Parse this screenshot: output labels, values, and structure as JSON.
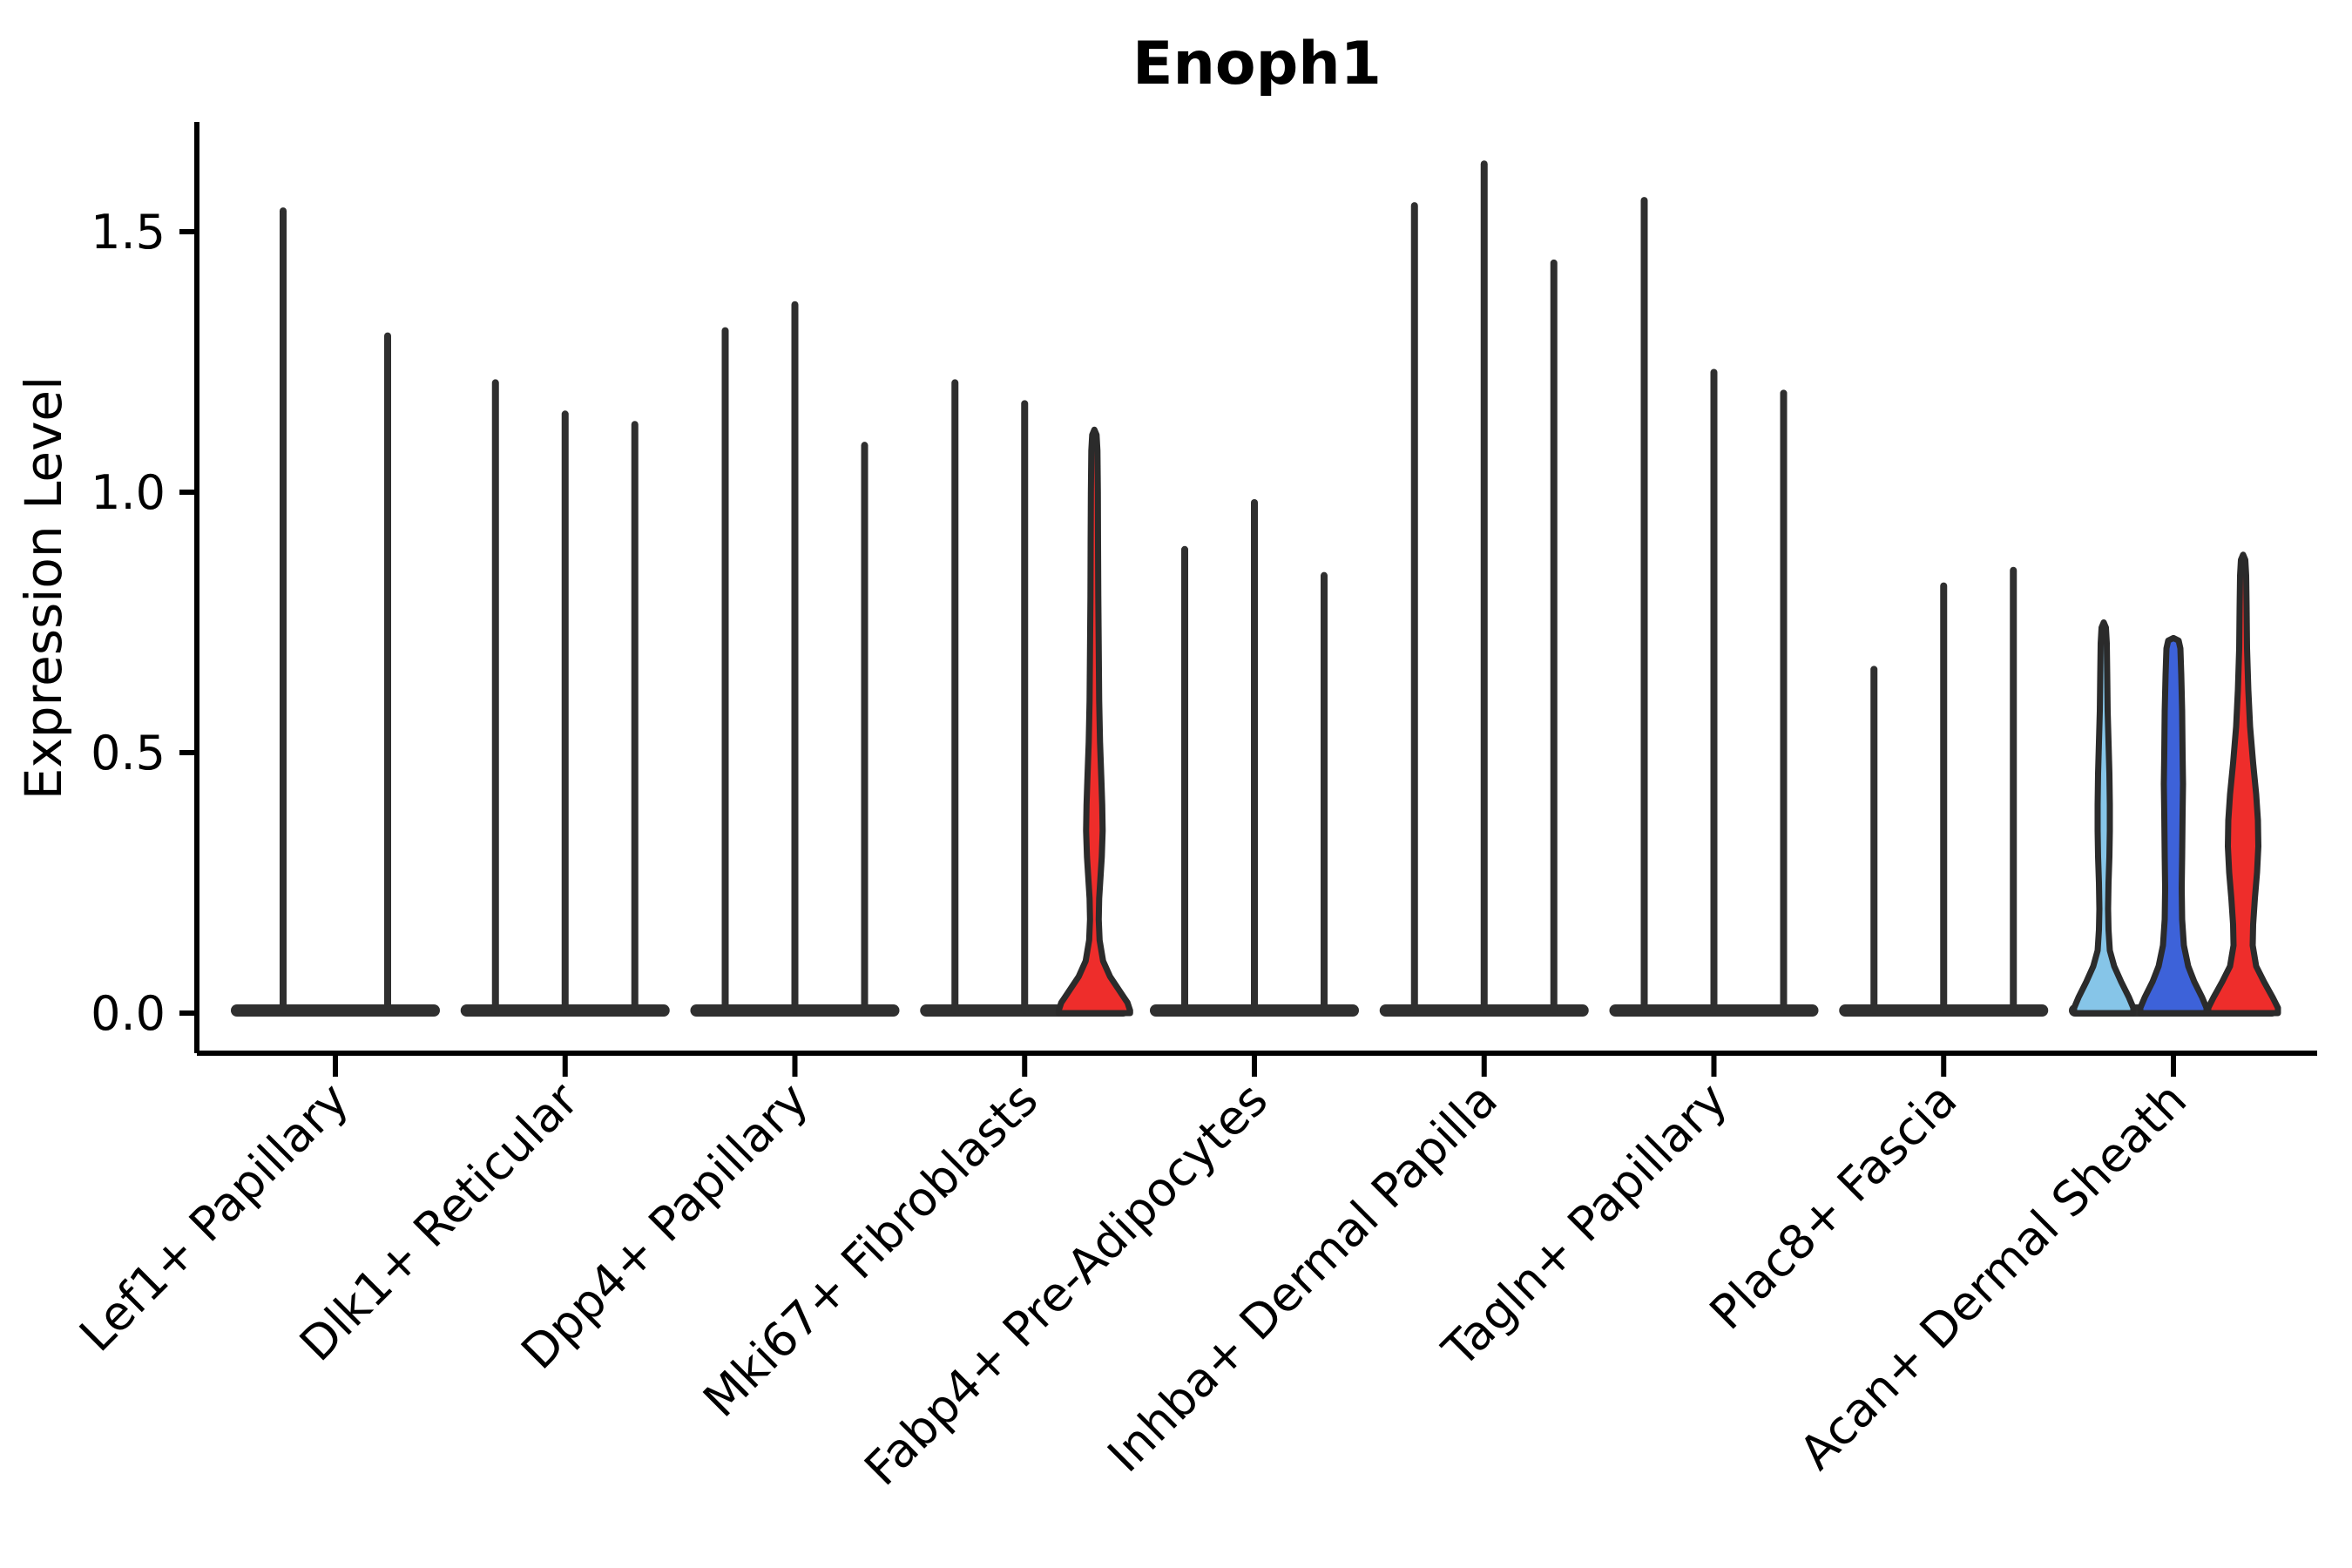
{
  "chart_data": {
    "type": "violin",
    "title": "Enoph1",
    "ylabel": "Expression Level",
    "xlabel": "",
    "grid": false,
    "legend": null,
    "ylim": [
      -0.077,
      1.71
    ],
    "yticks": [
      {
        "value": 0.0,
        "label": "0.0"
      },
      {
        "value": 0.5,
        "label": "0.5"
      },
      {
        "value": 1.0,
        "label": "1.0"
      },
      {
        "value": 1.5,
        "label": "1.5"
      }
    ],
    "colors": {
      "spike": "#2f2f2f",
      "outline": "#2b2b2b",
      "axis": "#000000",
      "red": "#ee2d2b",
      "blue": "#3d62d9",
      "light_blue": "#86c5e8"
    },
    "categories": [
      "Lef1+ Papillary",
      "Dlk1+ Reticular",
      "Dpp4+ Papillary",
      "Mki67+ Fibroblasts",
      "Fabp4+ Pre-Adipocytes",
      "Inhba+ Dermal Papilla",
      "Tagln+ Papillary",
      "Plac8+ Fascia",
      "Acan+ Dermal Sheath"
    ],
    "groups": [
      {
        "category": "Lef1+ Papillary",
        "violins": [
          {
            "style": "spike",
            "offset": -60,
            "max": 1.54
          },
          {
            "style": "spike",
            "offset": 60,
            "max": 1.3
          }
        ]
      },
      {
        "category": "Dlk1+ Reticular",
        "violins": [
          {
            "style": "spike",
            "offset": -80,
            "max": 1.21
          },
          {
            "style": "spike",
            "offset": 0,
            "max": 1.15
          },
          {
            "style": "spike",
            "offset": 80,
            "max": 1.13
          }
        ]
      },
      {
        "category": "Dpp4+ Papillary",
        "violins": [
          {
            "style": "spike",
            "offset": -80,
            "max": 1.31
          },
          {
            "style": "spike",
            "offset": 0,
            "max": 1.36
          },
          {
            "style": "spike",
            "offset": 80,
            "max": 1.09
          }
        ]
      },
      {
        "category": "Mki67+ Fibroblasts",
        "violins": [
          {
            "style": "spike",
            "offset": -80,
            "max": 1.21
          },
          {
            "style": "spike",
            "offset": 0,
            "max": 1.17
          },
          {
            "style": "violin",
            "offset": 80,
            "max": 1.12,
            "color_key": "red",
            "profile": [
              [
                1.12,
                0
              ],
              [
                1.11,
                2.5
              ],
              [
                1.08,
                3.5
              ],
              [
                1.0,
                4
              ],
              [
                0.9,
                4.2
              ],
              [
                0.8,
                4.5
              ],
              [
                0.7,
                5
              ],
              [
                0.6,
                5.5
              ],
              [
                0.52,
                6.5
              ],
              [
                0.45,
                8
              ],
              [
                0.4,
                9
              ],
              [
                0.35,
                9.5
              ],
              [
                0.3,
                8.5
              ],
              [
                0.26,
                7
              ],
              [
                0.22,
                5.5
              ],
              [
                0.18,
                5
              ],
              [
                0.14,
                6
              ],
              [
                0.1,
                10
              ],
              [
                0.07,
                18
              ],
              [
                0.04,
                30
              ],
              [
                0.02,
                38
              ],
              [
                0.005,
                41
              ],
              [
                0,
                41
              ]
            ]
          }
        ]
      },
      {
        "category": "Fabp4+ Pre-Adipocytes",
        "violins": [
          {
            "style": "spike",
            "offset": -80,
            "max": 0.89
          },
          {
            "style": "spike",
            "offset": 0,
            "max": 0.98
          },
          {
            "style": "spike",
            "offset": 80,
            "max": 0.84
          }
        ]
      },
      {
        "category": "Inhba+ Dermal Papilla",
        "violins": [
          {
            "style": "spike",
            "offset": -80,
            "max": 1.55
          },
          {
            "style": "spike",
            "offset": 0,
            "max": 1.63
          },
          {
            "style": "spike",
            "offset": 80,
            "max": 1.44
          }
        ]
      },
      {
        "category": "Tagln+ Papillary",
        "violins": [
          {
            "style": "spike",
            "offset": -80,
            "max": 1.56
          },
          {
            "style": "spike",
            "offset": 0,
            "max": 1.23
          },
          {
            "style": "spike",
            "offset": 80,
            "max": 1.19
          }
        ]
      },
      {
        "category": "Plac8+ Fascia",
        "violins": [
          {
            "style": "spike",
            "offset": -80,
            "max": 0.66
          },
          {
            "style": "spike",
            "offset": 0,
            "max": 0.82
          },
          {
            "style": "spike",
            "offset": 80,
            "max": 0.85
          }
        ]
      },
      {
        "category": "Acan+ Dermal Sheath",
        "violins": [
          {
            "style": "violin",
            "offset": -80,
            "max": 0.75,
            "color_key": "light_blue",
            "profile": [
              [
                0.75,
                0
              ],
              [
                0.74,
                2.5
              ],
              [
                0.71,
                3.5
              ],
              [
                0.65,
                4
              ],
              [
                0.58,
                4.5
              ],
              [
                0.52,
                5.5
              ],
              [
                0.46,
                6.5
              ],
              [
                0.4,
                7
              ],
              [
                0.35,
                7
              ],
              [
                0.3,
                6.5
              ],
              [
                0.25,
                5.5
              ],
              [
                0.2,
                5
              ],
              [
                0.16,
                5.5
              ],
              [
                0.12,
                7
              ],
              [
                0.09,
                12
              ],
              [
                0.06,
                20
              ],
              [
                0.03,
                29
              ],
              [
                0.01,
                34
              ],
              [
                0,
                34
              ]
            ]
          },
          {
            "style": "violin",
            "offset": 0,
            "max": 0.72,
            "color_key": "blue",
            "profile": [
              [
                0.72,
                0
              ],
              [
                0.715,
                6
              ],
              [
                0.7,
                8
              ],
              [
                0.65,
                9
              ],
              [
                0.58,
                10
              ],
              [
                0.5,
                10.5
              ],
              [
                0.44,
                11
              ],
              [
                0.38,
                10.5
              ],
              [
                0.3,
                10
              ],
              [
                0.24,
                9.5
              ],
              [
                0.18,
                10
              ],
              [
                0.13,
                12
              ],
              [
                0.09,
                17
              ],
              [
                0.06,
                24
              ],
              [
                0.03,
                33
              ],
              [
                0.01,
                38
              ],
              [
                0,
                38
              ]
            ]
          },
          {
            "style": "violin",
            "offset": 80,
            "max": 0.88,
            "color_key": "red",
            "profile": [
              [
                0.88,
                0
              ],
              [
                0.87,
                2.5
              ],
              [
                0.84,
                3.5
              ],
              [
                0.78,
                4
              ],
              [
                0.7,
                4.5
              ],
              [
                0.62,
                6
              ],
              [
                0.55,
                8
              ],
              [
                0.48,
                11.5
              ],
              [
                0.42,
                15
              ],
              [
                0.37,
                17
              ],
              [
                0.32,
                17.5
              ],
              [
                0.27,
                16
              ],
              [
                0.22,
                13.5
              ],
              [
                0.17,
                11.5
              ],
              [
                0.13,
                11
              ],
              [
                0.09,
                15
              ],
              [
                0.06,
                24
              ],
              [
                0.03,
                34
              ],
              [
                0.01,
                40
              ],
              [
                0,
                40
              ]
            ]
          }
        ]
      }
    ]
  }
}
